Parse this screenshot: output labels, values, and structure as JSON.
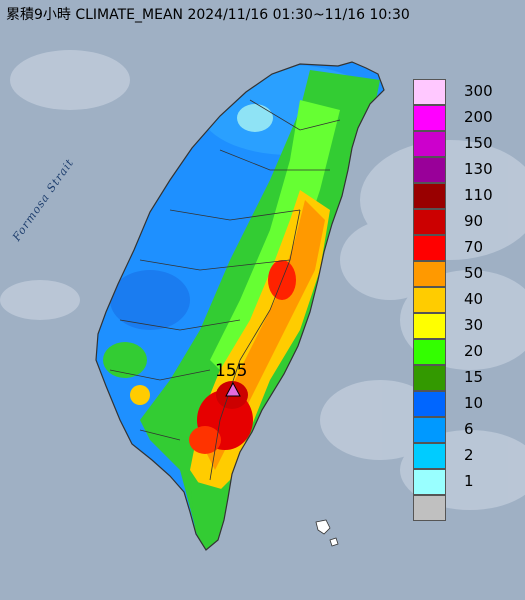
{
  "map": {
    "title": "累積9小時 CLIMATE_MEAN 2024/11/16 01:30~11/16 10:30",
    "strait_label": "Formosa Strait",
    "max_value_label": "155",
    "max_marker_color": "#e36bde",
    "ocean_color": "#9fb0c4",
    "land_outline_color": "#333333"
  },
  "legend": {
    "items": [
      {
        "label": "300",
        "color": "#ffc8ff"
      },
      {
        "label": "200",
        "color": "#ff00ff"
      },
      {
        "label": "150",
        "color": "#cc00cc"
      },
      {
        "label": "130",
        "color": "#990099"
      },
      {
        "label": "110",
        "color": "#990000"
      },
      {
        "label": "90",
        "color": "#cc0000"
      },
      {
        "label": "70",
        "color": "#ff0000"
      },
      {
        "label": "50",
        "color": "#ff9900"
      },
      {
        "label": "40",
        "color": "#ffcc00"
      },
      {
        "label": "30",
        "color": "#ffff00"
      },
      {
        "label": "20",
        "color": "#33ff00"
      },
      {
        "label": "15",
        "color": "#339900"
      },
      {
        "label": "10",
        "color": "#0066ff"
      },
      {
        "label": "6",
        "color": "#0099ff"
      },
      {
        "label": "2",
        "color": "#00ccff"
      },
      {
        "label": "1",
        "color": "#99ffff"
      },
      {
        "label": "",
        "color": "#c0c0c0"
      }
    ]
  }
}
